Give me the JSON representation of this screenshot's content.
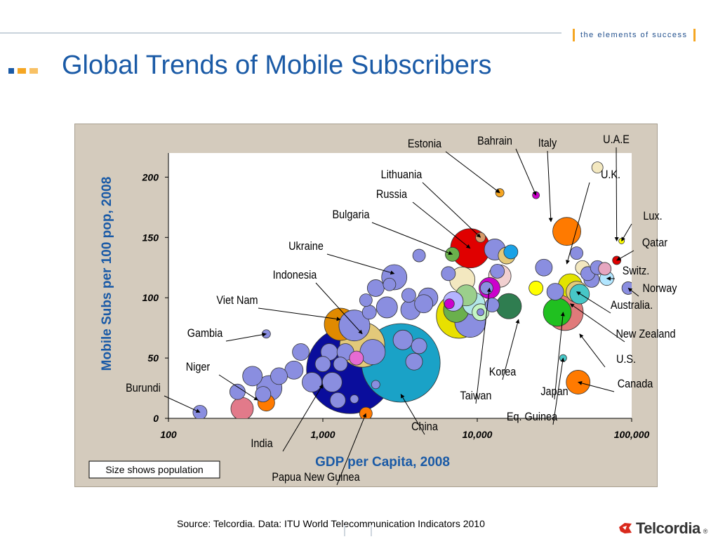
{
  "header": {
    "tagline": "the elements of success",
    "title": "Global Trends of Mobile Subscribers"
  },
  "colors": {
    "accent_blue": "#1a5aa6",
    "accent_orange": "#f5a623",
    "brand_red": "#d9291c"
  },
  "footer": {
    "source": "Source: Telcordia.  Data: ITU World Telecommunication Indicators 2010",
    "brand": "Telcordia",
    "brand_mark": "®"
  },
  "chart_data": {
    "type": "scatter",
    "xlabel": "GDP per Capita, 2008",
    "ylabel": "Mobile Subs per 100 pop,  2008",
    "x_scale": "log",
    "xlim": [
      100,
      100000
    ],
    "ylim": [
      0,
      220
    ],
    "x_ticks": [
      {
        "value": 100,
        "label": "100"
      },
      {
        "value": 1000,
        "label": "1,000"
      },
      {
        "value": 10000,
        "label": "10,000"
      },
      {
        "value": 100000,
        "label": "100,000"
      }
    ],
    "y_ticks": [
      {
        "value": 0,
        "label": "0"
      },
      {
        "value": 50,
        "label": "50"
      },
      {
        "value": 100,
        "label": "100"
      },
      {
        "value": 150,
        "label": "150"
      },
      {
        "value": 200,
        "label": "200"
      }
    ],
    "size_note": "Size shows population",
    "points": [
      {
        "x": 1500,
        "y": 40,
        "r": 62,
        "color": "#0a0d9c"
      },
      {
        "x": 3200,
        "y": 46,
        "r": 56,
        "color": "#1aa2c7"
      },
      {
        "x": 1800,
        "y": 61,
        "r": 32,
        "color": "#e3c97a"
      },
      {
        "x": 1600,
        "y": 77,
        "r": 22,
        "color": "#8a8ee0"
      },
      {
        "x": 2100,
        "y": 55,
        "r": 18,
        "color": "#8a8ee0"
      },
      {
        "x": 450,
        "y": 25,
        "r": 18,
        "color": "#8a8ee0"
      },
      {
        "x": 520,
        "y": 35,
        "r": 12,
        "color": "#8a8ee0"
      },
      {
        "x": 650,
        "y": 40,
        "r": 13,
        "color": "#8a8ee0"
      },
      {
        "x": 720,
        "y": 55,
        "r": 12,
        "color": "#8a8ee0"
      },
      {
        "x": 350,
        "y": 35,
        "r": 14,
        "color": "#8a8ee0"
      },
      {
        "x": 300,
        "y": 8,
        "r": 16,
        "color": "#e27a8a"
      },
      {
        "x": 280,
        "y": 22,
        "r": 11,
        "color": "#8a8ee0"
      },
      {
        "x": 410,
        "y": 20,
        "r": 11,
        "color": "#8a8ee0"
      },
      {
        "x": 850,
        "y": 30,
        "r": 14,
        "color": "#8a8ee0"
      },
      {
        "x": 1100,
        "y": 55,
        "r": 12,
        "color": "#8a8ee0"
      },
      {
        "x": 1150,
        "y": 30,
        "r": 14,
        "color": "#8a8ee0"
      },
      {
        "x": 1250,
        "y": 15,
        "r": 11,
        "color": "#8a8ee0"
      },
      {
        "x": 1300,
        "y": 45,
        "r": 10,
        "color": "#8a8ee0"
      },
      {
        "x": 1000,
        "y": 45,
        "r": 11,
        "color": "#8a8ee0"
      },
      {
        "x": 1400,
        "y": 55,
        "r": 12,
        "color": "#8a8ee0"
      },
      {
        "x": 1650,
        "y": 50,
        "r": 10,
        "color": "#e66bd3"
      },
      {
        "x": 2600,
        "y": 92,
        "r": 15,
        "color": "#8a8ee0"
      },
      {
        "x": 3300,
        "y": 65,
        "r": 14,
        "color": "#8a8ee0"
      },
      {
        "x": 3700,
        "y": 90,
        "r": 14,
        "color": "#8a8ee0"
      },
      {
        "x": 3600,
        "y": 102,
        "r": 10,
        "color": "#8a8ee0"
      },
      {
        "x": 3900,
        "y": 47,
        "r": 12,
        "color": "#8a8ee0"
      },
      {
        "x": 4200,
        "y": 60,
        "r": 11,
        "color": "#8a8ee0"
      },
      {
        "x": 4800,
        "y": 100,
        "r": 14,
        "color": "#8a8ee0"
      },
      {
        "x": 4500,
        "y": 95,
        "r": 13,
        "color": "#8a8ee0"
      },
      {
        "x": 2900,
        "y": 117,
        "r": 18,
        "color": "#8a8ee0"
      },
      {
        "x": 2200,
        "y": 108,
        "r": 12,
        "color": "#8a8ee0"
      },
      {
        "x": 2700,
        "y": 111,
        "r": 9,
        "color": "#8a8ee0"
      },
      {
        "x": 1900,
        "y": 98,
        "r": 9,
        "color": "#8a8ee0"
      },
      {
        "x": 2000,
        "y": 88,
        "r": 10,
        "color": "#8a8ee0"
      },
      {
        "x": 7600,
        "y": 85,
        "r": 32,
        "color": "#e8e000"
      },
      {
        "x": 9000,
        "y": 80,
        "r": 22,
        "color": "#8a8ee0"
      },
      {
        "x": 7300,
        "y": 90,
        "r": 18,
        "color": "#6ab04c"
      },
      {
        "x": 7000,
        "y": 97,
        "r": 14,
        "color": "#b4b4ff"
      },
      {
        "x": 8000,
        "y": 115,
        "r": 18,
        "color": "#f3e8c0"
      },
      {
        "x": 9500,
        "y": 95,
        "r": 16,
        "color": "#b2e6e8"
      },
      {
        "x": 8500,
        "y": 102,
        "r": 15,
        "color": "#9bcf8c"
      },
      {
        "x": 12000,
        "y": 108,
        "r": 15,
        "color": "#cc00cc"
      },
      {
        "x": 14000,
        "y": 118,
        "r": 16,
        "color": "#f1d0d0"
      },
      {
        "x": 16000,
        "y": 93,
        "r": 18,
        "color": "#2f7d50"
      },
      {
        "x": 10500,
        "y": 88,
        "r": 12,
        "color": "#c4f5c4"
      },
      {
        "x": 10500,
        "y": 88,
        "r": 5,
        "color": "#8a8ee0"
      },
      {
        "x": 9000,
        "y": 141,
        "r": 28,
        "color": "#e00000"
      },
      {
        "x": 13000,
        "y": 140,
        "r": 15,
        "color": "#8a8ee0"
      },
      {
        "x": 15500,
        "y": 135,
        "r": 12,
        "color": "#e3c97a"
      },
      {
        "x": 16500,
        "y": 138,
        "r": 10,
        "color": "#1aa2e6"
      },
      {
        "x": 13500,
        "y": 122,
        "r": 10,
        "color": "#8a8ee0"
      },
      {
        "x": 11500,
        "y": 108,
        "r": 9,
        "color": "#8a8ee0"
      },
      {
        "x": 12500,
        "y": 94,
        "r": 10,
        "color": "#8a8ee0"
      },
      {
        "x": 6500,
        "y": 120,
        "r": 10,
        "color": "#8a8ee0"
      },
      {
        "x": 4200,
        "y": 135,
        "r": 9,
        "color": "#8a8ee0"
      },
      {
        "x": 6600,
        "y": 95,
        "r": 7,
        "color": "#cc00cc"
      },
      {
        "x": 38000,
        "y": 155,
        "r": 20,
        "color": "#ff7a00"
      },
      {
        "x": 37000,
        "y": 88,
        "r": 26,
        "color": "#e07a7a"
      },
      {
        "x": 33000,
        "y": 88,
        "r": 20,
        "color": "#20c020"
      },
      {
        "x": 40000,
        "y": 110,
        "r": 17,
        "color": "#e3e300"
      },
      {
        "x": 44000,
        "y": 105,
        "r": 15,
        "color": "#e3c97a"
      },
      {
        "x": 46000,
        "y": 103,
        "r": 14,
        "color": "#47c7c7"
      },
      {
        "x": 32000,
        "y": 105,
        "r": 12,
        "color": "#8a8ee0"
      },
      {
        "x": 45000,
        "y": 30,
        "r": 17,
        "color": "#ff7a00"
      },
      {
        "x": 27000,
        "y": 125,
        "r": 12,
        "color": "#8a8ee0"
      },
      {
        "x": 24000,
        "y": 108,
        "r": 10,
        "color": "#ffff00"
      },
      {
        "x": 44000,
        "y": 137,
        "r": 9,
        "color": "#8a8ee0"
      },
      {
        "x": 48000,
        "y": 125,
        "r": 10,
        "color": "#f3e8c0"
      },
      {
        "x": 52000,
        "y": 120,
        "r": 10,
        "color": "#8a8ee0"
      },
      {
        "x": 55000,
        "y": 115,
        "r": 11,
        "color": "#8a8ee0"
      },
      {
        "x": 60000,
        "y": 125,
        "r": 10,
        "color": "#8a8ee0"
      },
      {
        "x": 67000,
        "y": 124,
        "r": 9,
        "color": "#e6a6c0"
      },
      {
        "x": 69000,
        "y": 116,
        "r": 10,
        "color": "#b2e6ff"
      },
      {
        "x": 95000,
        "y": 108,
        "r": 9,
        "color": "#8a8ee0"
      },
      {
        "x": 80000,
        "y": 131,
        "r": 6,
        "color": "#e00000"
      },
      {
        "x": 86000,
        "y": 147,
        "r": 4,
        "color": "#ffff00"
      },
      {
        "x": 60000,
        "y": 208,
        "r": 8,
        "color": "#f3e8c0"
      },
      {
        "x": 24000,
        "y": 185,
        "r": 5,
        "color": "#cc00cc"
      },
      {
        "x": 14000,
        "y": 187,
        "r": 6,
        "color": "#f5a623"
      },
      {
        "x": 6900,
        "y": 136,
        "r": 10,
        "color": "#6ab04c"
      },
      {
        "x": 10500,
        "y": 150,
        "r": 7,
        "color": "#d89a6a"
      },
      {
        "x": 160,
        "y": 5,
        "r": 10,
        "color": "#8a8ee0"
      },
      {
        "x": 430,
        "y": 70,
        "r": 6,
        "color": "#8a8ee0"
      },
      {
        "x": 1300,
        "y": 78,
        "r": 23,
        "color": "#e08a00"
      },
      {
        "x": 430,
        "y": 13,
        "r": 12,
        "color": "#ff7a00"
      },
      {
        "x": 1900,
        "y": 4,
        "r": 9,
        "color": "#ff7a00"
      },
      {
        "x": 36000,
        "y": 50,
        "r": 5,
        "color": "#47c7c7"
      },
      {
        "x": 1600,
        "y": 16,
        "r": 6,
        "color": "#8a8ee0"
      },
      {
        "x": 2200,
        "y": 28,
        "r": 6,
        "color": "#8a8ee0"
      }
    ],
    "annotations": [
      {
        "label": "Estonia",
        "tx": 605,
        "ty": 210,
        "x": 14000,
        "y": 187
      },
      {
        "label": "Bahrain",
        "tx": 705,
        "ty": 206,
        "x": 24000,
        "y": 185
      },
      {
        "label": "Italy",
        "tx": 780,
        "ty": 209,
        "x": 30000,
        "y": 163
      },
      {
        "label": "U.A.E",
        "tx": 878,
        "ty": 204,
        "x": 80000,
        "y": 147
      },
      {
        "label": "U.K.",
        "tx": 870,
        "ty": 254,
        "x": 38000,
        "y": 128
      },
      {
        "label": "Lithuania",
        "tx": 572,
        "ty": 254,
        "x": 10500,
        "y": 150
      },
      {
        "label": "Russia",
        "tx": 558,
        "ty": 282,
        "x": 9000,
        "y": 141
      },
      {
        "label": "Bulgaria",
        "tx": 500,
        "ty": 311,
        "x": 6900,
        "y": 136
      },
      {
        "label": "Lux.",
        "tx": 930,
        "ty": 313,
        "x": 86000,
        "y": 147
      },
      {
        "label": "Ukraine",
        "tx": 436,
        "ty": 356,
        "x": 2900,
        "y": 120
      },
      {
        "label": "Qatar",
        "tx": 933,
        "ty": 351,
        "x": 80000,
        "y": 131
      },
      {
        "label": "Switz.",
        "tx": 906,
        "ty": 391,
        "x": 69000,
        "y": 116
      },
      {
        "label": "Indonesia",
        "tx": 420,
        "ty": 397,
        "x": 1800,
        "y": 70
      },
      {
        "label": "Norway",
        "tx": 940,
        "ty": 416,
        "x": 95000,
        "y": 108
      },
      {
        "label": "Viet Nam",
        "tx": 338,
        "ty": 433,
        "x": 1300,
        "y": 82
      },
      {
        "label": "Australia.",
        "tx": 900,
        "ty": 440,
        "x": 44000,
        "y": 105
      },
      {
        "label": "Gambia",
        "tx": 292,
        "ty": 480,
        "x": 430,
        "y": 70
      },
      {
        "label": "New Zealand",
        "tx": 920,
        "ty": 481,
        "x": 40000,
        "y": 95
      },
      {
        "label": "U.S.",
        "tx": 892,
        "ty": 517,
        "x": 46000,
        "y": 70
      },
      {
        "label": "Niger",
        "tx": 282,
        "ty": 528,
        "x": 380,
        "y": 15
      },
      {
        "label": "Korea",
        "tx": 716,
        "ty": 535,
        "x": 18500,
        "y": 82
      },
      {
        "label": "Canada",
        "tx": 905,
        "ty": 552,
        "x": 45000,
        "y": 30
      },
      {
        "label": "Burundi",
        "tx": 204,
        "ty": 558,
        "x": 160,
        "y": 5
      },
      {
        "label": "Japan",
        "tx": 790,
        "ty": 563,
        "x": 36000,
        "y": 88
      },
      {
        "label": "Taiwan",
        "tx": 678,
        "ty": 569,
        "x": 12000,
        "y": 108
      },
      {
        "label": "Eq. Guinea",
        "tx": 758,
        "ty": 599,
        "x": 36000,
        "y": 50
      },
      {
        "label": "China",
        "tx": 605,
        "ty": 613,
        "x": 3200,
        "y": 20
      },
      {
        "label": "India",
        "tx": 373,
        "ty": 637,
        "x": 1000,
        "y": 28
      },
      {
        "label": "Papua New Guinea",
        "tx": 450,
        "ty": 685,
        "x": 1900,
        "y": 4
      }
    ]
  }
}
